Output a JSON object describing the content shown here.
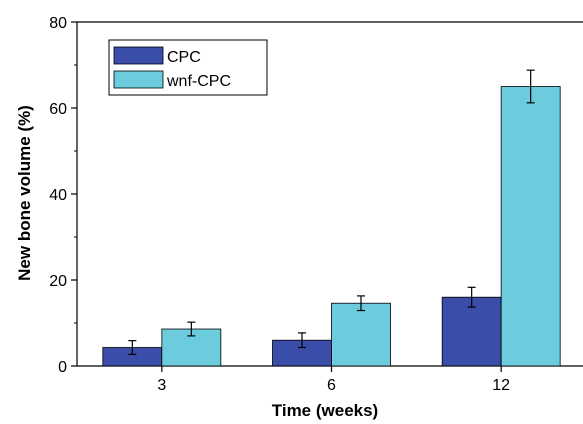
{
  "chart_data": {
    "type": "bar",
    "title": "",
    "xlabel": "Time (weeks)",
    "ylabel": "New bone volume (%)",
    "categories": [
      "3",
      "6",
      "12"
    ],
    "ylim": [
      0,
      80
    ],
    "yticks": [
      0,
      20,
      40,
      60,
      80
    ],
    "grid": false,
    "legend_position": "top-left",
    "series": [
      {
        "name": "CPC",
        "color": "#3a4da8",
        "values": [
          4.3,
          6.0,
          16.0
        ],
        "errors": [
          1.6,
          1.7,
          2.3
        ]
      },
      {
        "name": "wnf-CPC",
        "color": "#6ccbdc",
        "values": [
          8.6,
          14.6,
          65.0
        ],
        "errors": [
          1.6,
          1.7,
          3.8
        ]
      }
    ]
  }
}
